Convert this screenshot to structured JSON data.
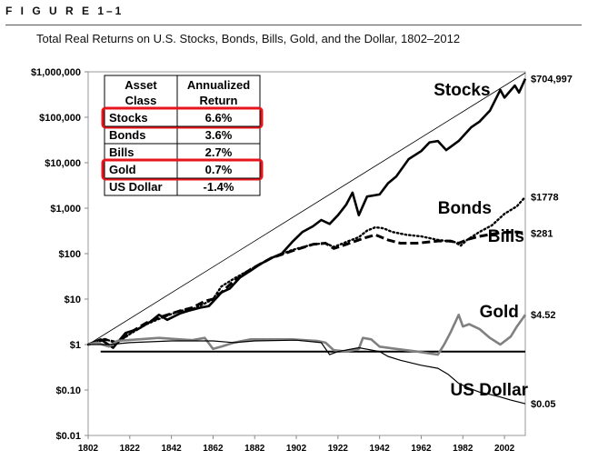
{
  "figure": {
    "label": "F I G U R E   1–1",
    "caption": "Total Real Returns on U.S. Stocks, Bonds, Bills, Gold, and the Dollar, 1802–2012"
  },
  "chart_data": {
    "type": "line",
    "title": "Total Real Returns on U.S. Stocks, Bonds, Bills, Gold, and the Dollar, 1802–2012",
    "xlabel": "",
    "ylabel": "",
    "yscale": "log",
    "xlim": [
      1802,
      2012
    ],
    "ylim": [
      0.01,
      1000000
    ],
    "x_ticks": [
      1802,
      1822,
      1842,
      1862,
      1882,
      1902,
      1922,
      1942,
      1962,
      1982,
      2002
    ],
    "y_ticks": [
      {
        "value": 1000000,
        "label": "$1,000,000"
      },
      {
        "value": 100000,
        "label": "$100,000"
      },
      {
        "value": 10000,
        "label": "$10,000"
      },
      {
        "value": 1000,
        "label": "$1,000"
      },
      {
        "value": 100,
        "label": "$100"
      },
      {
        "value": 10,
        "label": "$10"
      },
      {
        "value": 1,
        "label": "$1"
      },
      {
        "value": 0.1,
        "label": "$0.10"
      },
      {
        "value": 0.01,
        "label": "$0.01"
      }
    ],
    "series": [
      {
        "name": "Stocks",
        "style": "solid-thick",
        "color": "#000000",
        "end_label": "$704,997",
        "points": [
          [
            1802,
            1
          ],
          [
            1808,
            1.3
          ],
          [
            1814,
            0.85
          ],
          [
            1820,
            1.8
          ],
          [
            1826,
            2.2
          ],
          [
            1832,
            3.2
          ],
          [
            1836,
            4.5
          ],
          [
            1840,
            3.5
          ],
          [
            1846,
            4.8
          ],
          [
            1850,
            5.5
          ],
          [
            1856,
            6.5
          ],
          [
            1860,
            7
          ],
          [
            1864,
            11
          ],
          [
            1866,
            14
          ],
          [
            1870,
            17
          ],
          [
            1875,
            30
          ],
          [
            1880,
            42
          ],
          [
            1885,
            60
          ],
          [
            1890,
            80
          ],
          [
            1895,
            100
          ],
          [
            1900,
            180
          ],
          [
            1905,
            300
          ],
          [
            1910,
            400
          ],
          [
            1914,
            550
          ],
          [
            1918,
            450
          ],
          [
            1922,
            700
          ],
          [
            1926,
            1200
          ],
          [
            1929,
            2200
          ],
          [
            1932,
            700
          ],
          [
            1936,
            1800
          ],
          [
            1942,
            2000
          ],
          [
            1946,
            3500
          ],
          [
            1950,
            5000
          ],
          [
            1956,
            12000
          ],
          [
            1962,
            18000
          ],
          [
            1966,
            28000
          ],
          [
            1970,
            30000
          ],
          [
            1974,
            19000
          ],
          [
            1980,
            30000
          ],
          [
            1986,
            60000
          ],
          [
            1990,
            80000
          ],
          [
            1995,
            140000
          ],
          [
            2000,
            400000
          ],
          [
            2002,
            270000
          ],
          [
            2007,
            500000
          ],
          [
            2009,
            350000
          ],
          [
            2012,
            704997
          ]
        ]
      },
      {
        "name": "Bonds",
        "style": "dotted",
        "color": "#000000",
        "end_label": "$1778",
        "points": [
          [
            1802,
            1
          ],
          [
            1810,
            1.3
          ],
          [
            1816,
            1.1
          ],
          [
            1822,
            1.7
          ],
          [
            1830,
            2.8
          ],
          [
            1838,
            4
          ],
          [
            1846,
            5.5
          ],
          [
            1852,
            6
          ],
          [
            1858,
            8
          ],
          [
            1862,
            10
          ],
          [
            1866,
            19
          ],
          [
            1872,
            28
          ],
          [
            1880,
            45
          ],
          [
            1890,
            80
          ],
          [
            1900,
            120
          ],
          [
            1910,
            160
          ],
          [
            1916,
            170
          ],
          [
            1920,
            140
          ],
          [
            1926,
            180
          ],
          [
            1932,
            230
          ],
          [
            1936,
            320
          ],
          [
            1940,
            380
          ],
          [
            1944,
            360
          ],
          [
            1948,
            300
          ],
          [
            1955,
            260
          ],
          [
            1962,
            240
          ],
          [
            1970,
            200
          ],
          [
            1978,
            180
          ],
          [
            1981,
            150
          ],
          [
            1984,
            200
          ],
          [
            1990,
            300
          ],
          [
            1996,
            420
          ],
          [
            2002,
            750
          ],
          [
            2008,
            1100
          ],
          [
            2012,
            1778
          ]
        ]
      },
      {
        "name": "Bills",
        "style": "dashed",
        "color": "#000000",
        "end_label": "$281",
        "points": [
          [
            1802,
            1
          ],
          [
            1810,
            1.3
          ],
          [
            1816,
            1.1
          ],
          [
            1822,
            1.8
          ],
          [
            1830,
            3
          ],
          [
            1838,
            4.2
          ],
          [
            1846,
            5.5
          ],
          [
            1852,
            6.5
          ],
          [
            1858,
            9
          ],
          [
            1862,
            10
          ],
          [
            1866,
            14
          ],
          [
            1872,
            25
          ],
          [
            1880,
            45
          ],
          [
            1890,
            80
          ],
          [
            1900,
            115
          ],
          [
            1910,
            160
          ],
          [
            1916,
            170
          ],
          [
            1920,
            130
          ],
          [
            1926,
            160
          ],
          [
            1932,
            200
          ],
          [
            1936,
            230
          ],
          [
            1940,
            260
          ],
          [
            1946,
            200
          ],
          [
            1952,
            170
          ],
          [
            1960,
            170
          ],
          [
            1970,
            190
          ],
          [
            1976,
            190
          ],
          [
            1980,
            170
          ],
          [
            1985,
            210
          ],
          [
            1990,
            240
          ],
          [
            2000,
            290
          ],
          [
            2008,
            300
          ],
          [
            2012,
            281
          ]
        ]
      },
      {
        "name": "Gold",
        "style": "solid-gray",
        "color": "#808080",
        "end_label": "$4.52",
        "points": [
          [
            1802,
            1
          ],
          [
            1806,
            1.1
          ],
          [
            1812,
            0.9
          ],
          [
            1816,
            1.2
          ],
          [
            1826,
            1.3
          ],
          [
            1836,
            1.4
          ],
          [
            1846,
            1.3
          ],
          [
            1852,
            1.25
          ],
          [
            1858,
            1.4
          ],
          [
            1862,
            0.8
          ],
          [
            1866,
            0.9
          ],
          [
            1872,
            1.1
          ],
          [
            1880,
            1.3
          ],
          [
            1890,
            1.3
          ],
          [
            1900,
            1.3
          ],
          [
            1912,
            1.2
          ],
          [
            1916,
            1.1
          ],
          [
            1920,
            0.75
          ],
          [
            1926,
            0.7
          ],
          [
            1932,
            0.8
          ],
          [
            1934,
            1.4
          ],
          [
            1938,
            1.3
          ],
          [
            1942,
            0.9
          ],
          [
            1950,
            0.8
          ],
          [
            1960,
            0.7
          ],
          [
            1970,
            0.6
          ],
          [
            1973,
            1
          ],
          [
            1976,
            1.8
          ],
          [
            1980,
            4.5
          ],
          [
            1982,
            2.5
          ],
          [
            1985,
            2.8
          ],
          [
            1990,
            2.2
          ],
          [
            1995,
            1.4
          ],
          [
            2000,
            1
          ],
          [
            2005,
            1.5
          ],
          [
            2008,
            2.5
          ],
          [
            2012,
            4.52
          ]
        ]
      },
      {
        "name": "US Dollar",
        "style": "solid-thin",
        "color": "#000000",
        "end_label": "$0.05",
        "points": [
          [
            1802,
            1
          ],
          [
            1812,
            1
          ],
          [
            1822,
            1.1
          ],
          [
            1842,
            1.2
          ],
          [
            1862,
            1.2
          ],
          [
            1872,
            1.1
          ],
          [
            1882,
            1.2
          ],
          [
            1902,
            1.25
          ],
          [
            1914,
            1.1
          ],
          [
            1918,
            0.6
          ],
          [
            1922,
            0.7
          ],
          [
            1932,
            0.85
          ],
          [
            1942,
            0.7
          ],
          [
            1946,
            0.55
          ],
          [
            1952,
            0.45
          ],
          [
            1962,
            0.35
          ],
          [
            1970,
            0.3
          ],
          [
            1975,
            0.22
          ],
          [
            1980,
            0.14
          ],
          [
            1985,
            0.11
          ],
          [
            1990,
            0.09
          ],
          [
            1995,
            0.08
          ],
          [
            2000,
            0.07
          ],
          [
            2005,
            0.06
          ],
          [
            2012,
            0.05
          ]
        ]
      }
    ],
    "reference_line": {
      "value": 0.7,
      "x_from": 1808,
      "x_to": 2012
    },
    "trend_line": {
      "from": [
        1802,
        1
      ],
      "to": [
        2012,
        950000
      ]
    },
    "series_labels": [
      {
        "name": "Stocks",
        "x": 1968,
        "y": 300000
      },
      {
        "name": "Bonds",
        "x": 1970,
        "y": 750
      },
      {
        "name": "Bills",
        "x": 1994,
        "y": 180
      },
      {
        "name": "Gold",
        "x": 1990,
        "y": 4
      },
      {
        "name": "US Dollar",
        "x": 1976,
        "y": 0.075
      }
    ],
    "inset_table": {
      "headers": [
        "Asset\nClass",
        "Annualized\nReturn"
      ],
      "rows": [
        {
          "asset": "Stocks",
          "return": "6.6%",
          "highlighted": true
        },
        {
          "asset": "Bonds",
          "return": "3.6%",
          "highlighted": false
        },
        {
          "asset": "Bills",
          "return": "2.7%",
          "highlighted": false
        },
        {
          "asset": "Gold",
          "return": "0.7%",
          "highlighted": true
        },
        {
          "asset": "US Dollar",
          "return": "-1.4%",
          "highlighted": false
        }
      ],
      "highlight_color": "#e8141b"
    }
  }
}
